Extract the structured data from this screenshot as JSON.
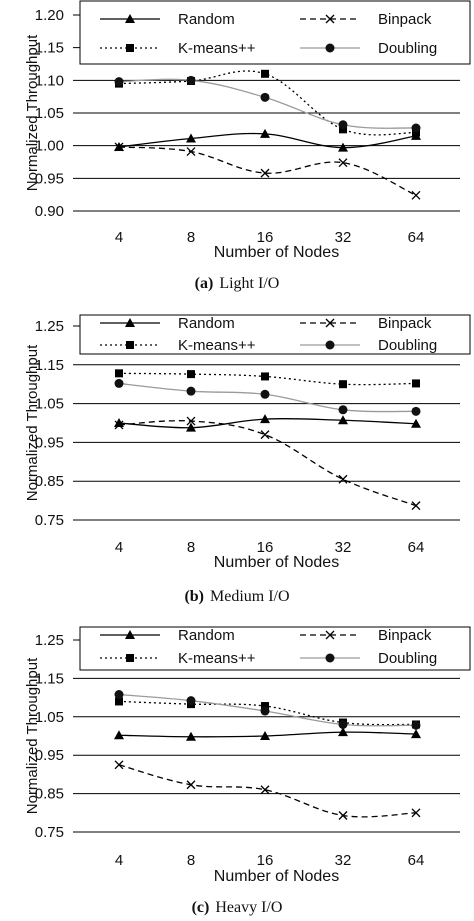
{
  "chart_data": [
    {
      "type": "line",
      "caption_label": "(a)",
      "caption_text": "Light I/O",
      "xlabel": "Number of Nodes",
      "ylabel": "Normalized Throughput",
      "categories": [
        "4",
        "8",
        "16",
        "32",
        "64"
      ],
      "yticks": [
        "0.90",
        "0.95",
        "1.00",
        "1.05",
        "1.10",
        "1.15",
        "1.20"
      ],
      "ylim": [
        0.9,
        1.2
      ],
      "grid": true,
      "legend_position": "top",
      "series": [
        {
          "name": "Random",
          "values": [
            0.998,
            1.011,
            1.018,
            0.997,
            1.015
          ]
        },
        {
          "name": "Binpack",
          "values": [
            0.998,
            0.991,
            0.958,
            0.974,
            0.924
          ]
        },
        {
          "name": "K-means++",
          "values": [
            1.095,
            1.099,
            1.11,
            1.025,
            1.02
          ]
        },
        {
          "name": "Doubling",
          "values": [
            1.098,
            1.1,
            1.074,
            1.032,
            1.027
          ]
        }
      ]
    },
    {
      "type": "line",
      "caption_label": "(b)",
      "caption_text": "Medium I/O",
      "xlabel": "Number of Nodes",
      "ylabel": "Normalized Throughput",
      "categories": [
        "4",
        "8",
        "16",
        "32",
        "64"
      ],
      "yticks": [
        "0.75",
        "0.85",
        "0.95",
        "1.05",
        "1.15",
        "1.25"
      ],
      "ylim": [
        0.75,
        1.25
      ],
      "grid": true,
      "legend_position": "top",
      "series": [
        {
          "name": "Random",
          "values": [
            1.0,
            0.988,
            1.01,
            1.007,
            0.998
          ]
        },
        {
          "name": "Binpack",
          "values": [
            0.995,
            1.005,
            0.97,
            0.855,
            0.787
          ]
        },
        {
          "name": "K-means++",
          "values": [
            1.128,
            1.126,
            1.12,
            1.1,
            1.102
          ]
        },
        {
          "name": "Doubling",
          "values": [
            1.102,
            1.082,
            1.074,
            1.034,
            1.03
          ]
        }
      ]
    },
    {
      "type": "line",
      "caption_label": "(c)",
      "caption_text": "Heavy I/O",
      "xlabel": "Number of Nodes",
      "ylabel": "Normalized Throughput",
      "categories": [
        "4",
        "8",
        "16",
        "32",
        "64"
      ],
      "yticks": [
        "0.75",
        "0.85",
        "0.95",
        "1.05",
        "1.15",
        "1.25"
      ],
      "ylim": [
        0.75,
        1.25
      ],
      "grid": true,
      "legend_position": "top",
      "series": [
        {
          "name": "Random",
          "values": [
            1.002,
            0.998,
            1.0,
            1.01,
            1.005
          ]
        },
        {
          "name": "Binpack",
          "values": [
            0.925,
            0.873,
            0.86,
            0.793,
            0.8
          ]
        },
        {
          "name": "K-means++",
          "values": [
            1.09,
            1.083,
            1.078,
            1.035,
            1.03
          ]
        },
        {
          "name": "Doubling",
          "values": [
            1.108,
            1.092,
            1.065,
            1.03,
            1.028
          ]
        }
      ]
    }
  ],
  "styles": {
    "Random": {
      "color": "#000000",
      "dash": "",
      "marker": "triangle"
    },
    "Binpack": {
      "color": "#000000",
      "dash": "6,4",
      "marker": "cross"
    },
    "K-means++": {
      "color": "#000000",
      "dash": "2,3",
      "marker": "square"
    },
    "Doubling": {
      "color": "#9a9a9a",
      "dash": "",
      "marker": "circle"
    }
  }
}
